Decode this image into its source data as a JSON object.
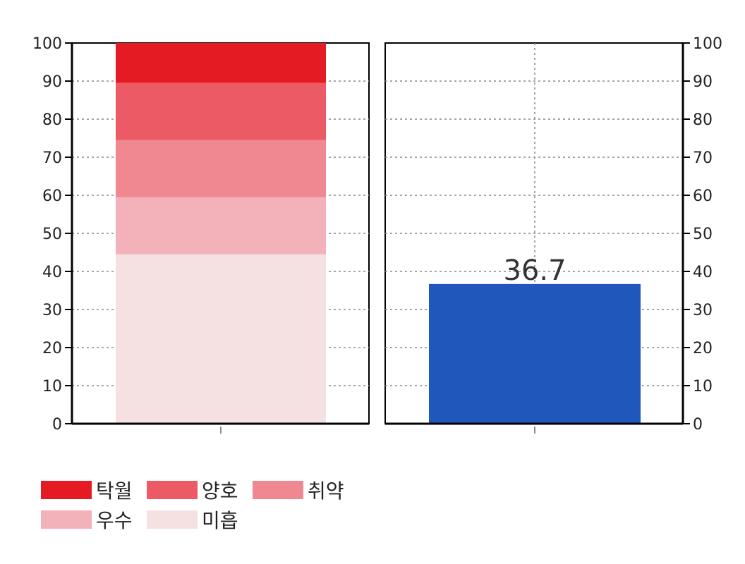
{
  "chart_data": [
    {
      "type": "bar",
      "stacked": true,
      "categories": [
        ""
      ],
      "ylim": [
        0,
        100
      ],
      "yticks": [
        "0",
        "10",
        "20",
        "30",
        "40",
        "50",
        "60",
        "70",
        "80",
        "90",
        "100"
      ],
      "grid": "horizontal dotted",
      "y_axis_side": "left",
      "series": [
        {
          "name": "미흡",
          "values": [
            44.5
          ],
          "color": "#f5e0e2"
        },
        {
          "name": "우수",
          "values": [
            15
          ],
          "color": "#f3b2b9"
        },
        {
          "name": "취약",
          "values": [
            15
          ],
          "color": "#ef8890"
        },
        {
          "name": "양호",
          "values": [
            15
          ],
          "color": "#ec5a65"
        },
        {
          "name": "탁월",
          "values": [
            10.5
          ],
          "color": "#e51b24"
        }
      ]
    },
    {
      "type": "bar",
      "categories": [
        ""
      ],
      "ylim": [
        0,
        100
      ],
      "yticks": [
        "0",
        "10",
        "20",
        "30",
        "40",
        "50",
        "60",
        "70",
        "80",
        "90",
        "100"
      ],
      "grid": "horizontal and vertical dotted",
      "y_axis_side": "right",
      "values": [
        36.7
      ],
      "data_labels": [
        "36.7"
      ],
      "color": "#1f57bb"
    }
  ],
  "legend": {
    "placement": "bottom-left",
    "items": [
      {
        "label": "탁월",
        "color": "#e51b24"
      },
      {
        "label": "양호",
        "color": "#ec5a65"
      },
      {
        "label": "취약",
        "color": "#ef8890"
      },
      {
        "label": "우수",
        "color": "#f3b2b9"
      },
      {
        "label": "미흡",
        "color": "#f5e0e2"
      }
    ]
  }
}
